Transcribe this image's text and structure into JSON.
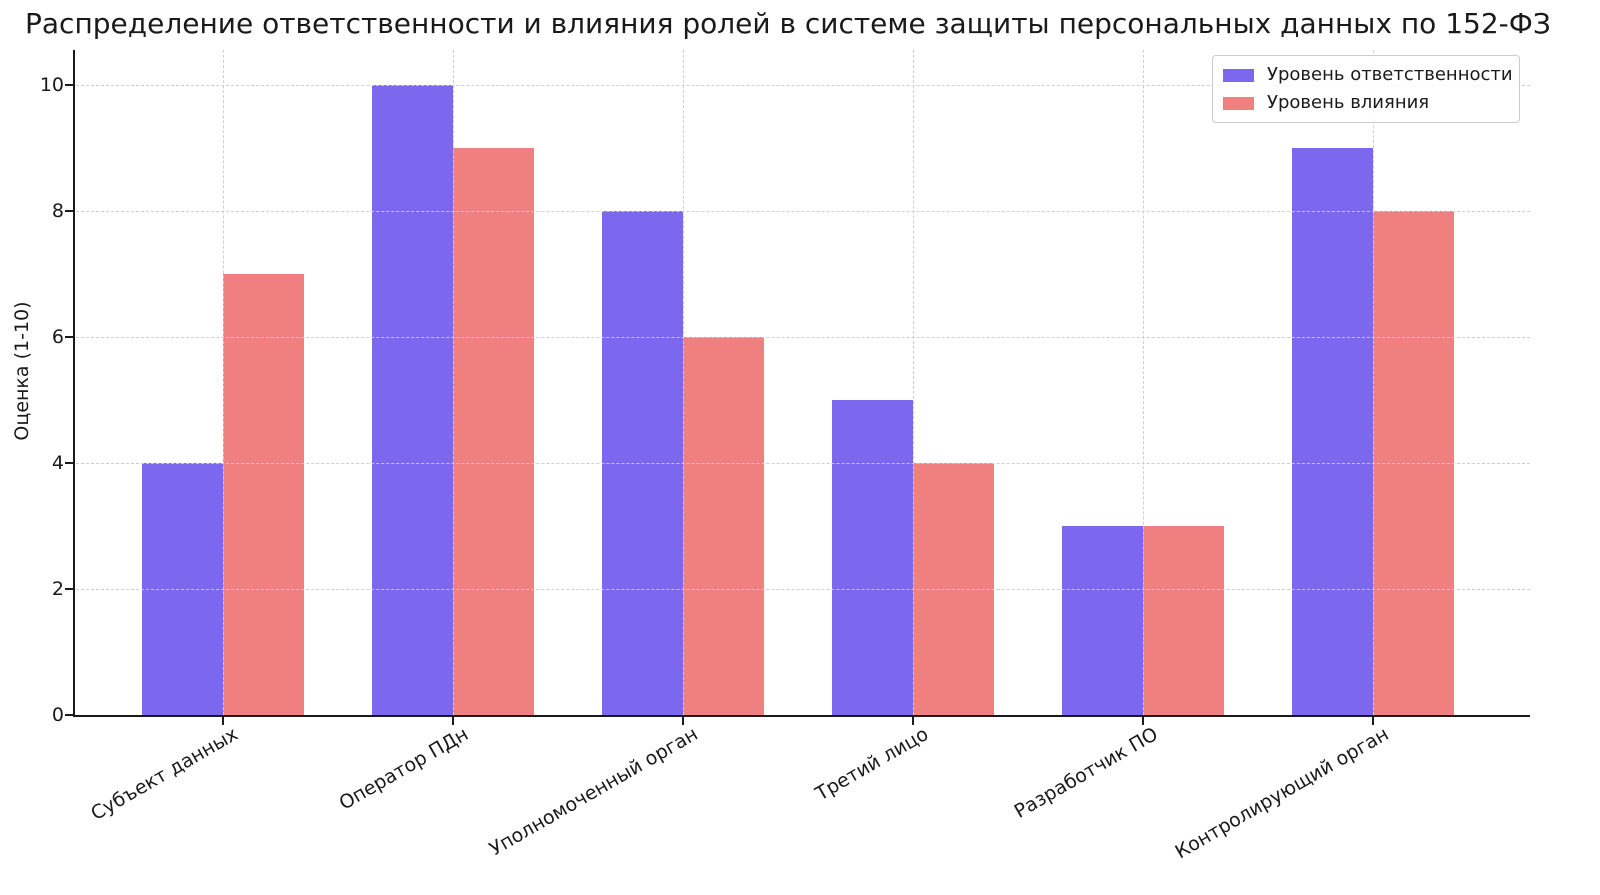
{
  "chart_data": {
    "type": "bar",
    "title": "Распределение ответственности и влияния ролей в системе защиты персональных данных по 152-ФЗ",
    "xlabel": "",
    "ylabel": "Оценка (1-10)",
    "categories": [
      "Субъект данных",
      "Оператор ПДн",
      "Уполномоченный орган",
      "Третий лицо",
      "Разработчик ПО",
      "Контролирующий орган"
    ],
    "series": [
      {
        "name": "Уровень ответственности",
        "color": "#7b68ee",
        "values": [
          4,
          10,
          8,
          5,
          3,
          9
        ]
      },
      {
        "name": "Уровень влияния",
        "color": "#f08080",
        "values": [
          7,
          9,
          6,
          4,
          3,
          8
        ]
      }
    ],
    "ylim": [
      0,
      10
    ],
    "yticks": [
      0,
      2,
      4,
      6,
      8,
      10
    ],
    "xtick_rotation_deg": 30,
    "grid": "dashed horizontal and vertical gridlines, drawn above bars",
    "legend_position": "upper right",
    "background_color": "#ffffff",
    "grid_color": "#cccccc"
  }
}
